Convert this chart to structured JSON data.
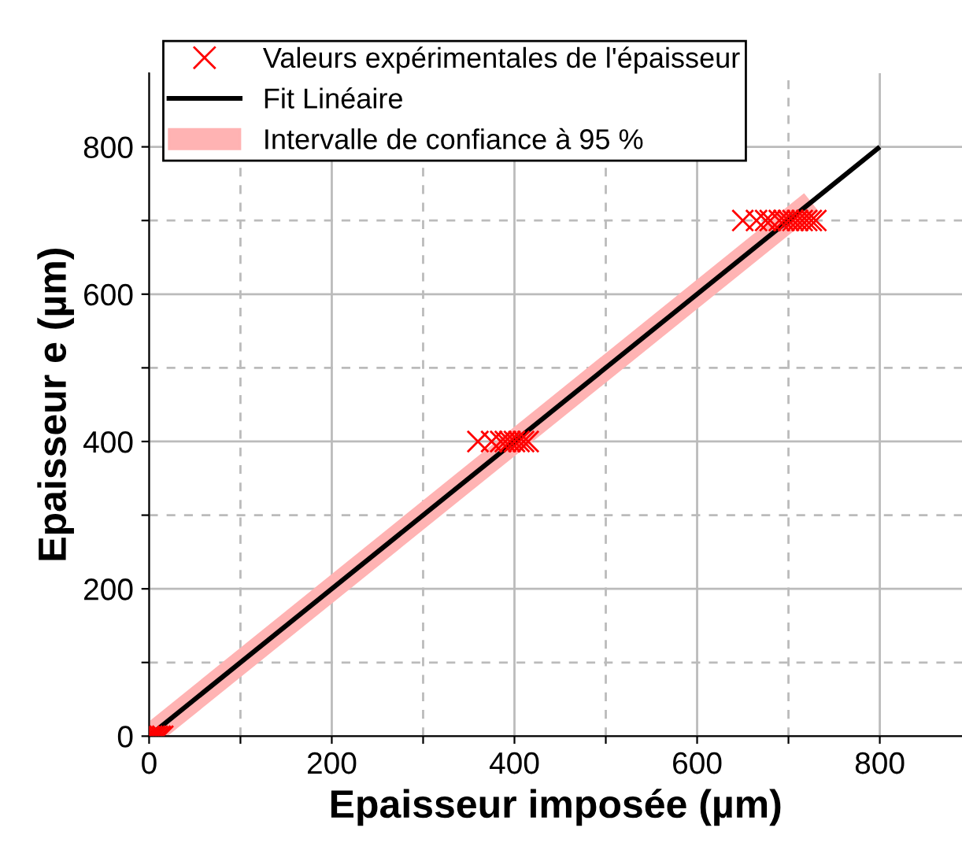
{
  "chart_data": {
    "type": "scatter",
    "xlabel": "Epaisseur imposée (µm)",
    "ylabel": "Epaisseur e (µm)",
    "xlim": [
      0,
      890
    ],
    "ylim": [
      0,
      900
    ],
    "xticks": [
      0,
      {
        "value": 100,
        "label": null
      },
      200,
      {
        "value": 300,
        "label": null
      },
      400,
      {
        "value": 500,
        "label": null
      },
      600,
      {
        "value": 700,
        "label": null
      },
      800
    ],
    "yticks": [
      0,
      {
        "value": 100,
        "label": null
      },
      200,
      {
        "value": 300,
        "label": null
      },
      400,
      {
        "value": 500,
        "label": null
      },
      600,
      {
        "value": 700,
        "label": null
      },
      800
    ],
    "grid": true,
    "legend": "top left",
    "series": [
      {
        "name": "Valeurs expérimentales de l'épaisseur",
        "marker": "cross",
        "color": "#ff0000",
        "x": [
          0,
          3,
          6,
          9,
          12,
          15,
          360,
          375,
          385,
          390,
          395,
          400,
          405,
          410,
          415,
          650,
          665,
          675,
          680,
          690,
          695,
          700,
          705,
          710,
          715,
          720,
          725,
          730
        ],
        "values": [
          0,
          0,
          0,
          0,
          0,
          0,
          400,
          400,
          400,
          400,
          400,
          400,
          400,
          400,
          400,
          700,
          700,
          700,
          700,
          700,
          700,
          700,
          700,
          700,
          700,
          700,
          700,
          700
        ]
      },
      {
        "name": "Intervalle de confiance à 95 %",
        "type": "line",
        "color": "#ffb3b3",
        "x": [
          0,
          725
        ],
        "values": [
          0,
          725
        ]
      },
      {
        "name": "Fit Linéaire",
        "type": "line",
        "color": "#000000",
        "x": [
          0,
          800
        ],
        "values": [
          0,
          800
        ]
      }
    ]
  }
}
